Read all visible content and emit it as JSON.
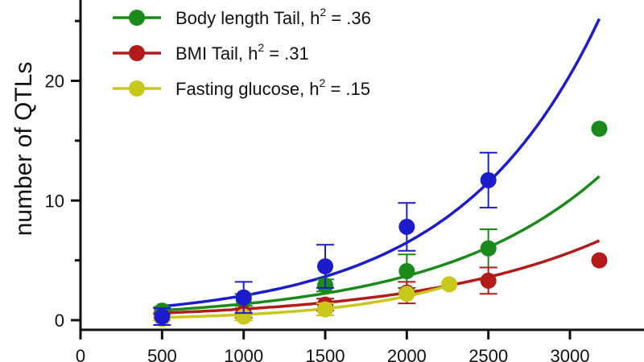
{
  "chart_data": {
    "type": "scatter",
    "ylabel": "number of QTLs",
    "xlabel": "",
    "xlim": [
      0,
      3300
    ],
    "ylim": [
      -0.5,
      26.5
    ],
    "x_ticks": [
      "0",
      "500",
      "1000",
      "1500",
      "2000",
      "2500",
      "3000"
    ],
    "x_tick_values": [
      0,
      500,
      1000,
      1500,
      2000,
      2500,
      3000
    ],
    "y_ticks": [
      "0",
      "10",
      "20"
    ],
    "y_tick_values": [
      0,
      10,
      20
    ],
    "legend_position": "top-left",
    "series": [
      {
        "name": "Body length Tail, h = .36",
        "legend": {
          "prefix": "Body length Tail, h",
          "sup": "2",
          "suffix": " = .36"
        },
        "color": "#1a8a1a",
        "points": [
          {
            "x": 500,
            "y": 0.8,
            "err": 0.3
          },
          {
            "x": 1000,
            "y": 1.7,
            "err": 0.5
          },
          {
            "x": 1500,
            "y": 2.9,
            "err": 0.5
          },
          {
            "x": 2000,
            "y": 4.1,
            "err": 1.4
          },
          {
            "x": 2500,
            "y": 6.0,
            "err": 1.6
          },
          {
            "x": 3180,
            "y": 16.0
          }
        ],
        "fit": {
          "a": 0.5,
          "b": 0.001
        }
      },
      {
        "name": "BMI  Tail, h = .31",
        "legend": {
          "prefix": "BMI  Tail, h",
          "sup": "2",
          "suffix": " = .31"
        },
        "color": "#b31b1b",
        "points": [
          {
            "x": 500,
            "y": 0.3,
            "err": 0.3
          },
          {
            "x": 1000,
            "y": 0.6,
            "err": 0.4
          },
          {
            "x": 1500,
            "y": 1.3,
            "err": 0.5
          },
          {
            "x": 2000,
            "y": 2.3,
            "err": 0.9
          },
          {
            "x": 2500,
            "y": 3.3,
            "err": 1.1
          },
          {
            "x": 3180,
            "y": 5.0
          }
        ],
        "fit": {
          "a": 0.38,
          "b": 0.0009
        }
      },
      {
        "name": "Fasting glucose, h = .15",
        "legend": {
          "prefix": "Fasting glucose, h",
          "sup": "2",
          "suffix": " = .15"
        },
        "color": "#c8c81a",
        "points": [
          {
            "x": 500,
            "y": 0.1,
            "err": 0.1
          },
          {
            "x": 1000,
            "y": 0.3,
            "err": 0.3
          },
          {
            "x": 1500,
            "y": 0.9,
            "err": 0.5
          },
          {
            "x": 2000,
            "y": 2.2
          },
          {
            "x": 2260,
            "y": 3.0
          }
        ],
        "fit": {
          "a": 0.11,
          "b": 0.00145,
          "xmax": 2260
        }
      },
      {
        "name": "",
        "color": "#1c1ccc",
        "points": [
          {
            "x": 500,
            "y": 0.3,
            "err": 0.7
          },
          {
            "x": 1000,
            "y": 1.9,
            "err": 1.3
          },
          {
            "x": 1500,
            "y": 4.5,
            "err": 1.8
          },
          {
            "x": 2000,
            "y": 7.8,
            "err": 2.0
          },
          {
            "x": 2500,
            "y": 11.7,
            "err": 2.3
          }
        ],
        "fit": {
          "a": 0.65,
          "b": 0.00115
        }
      }
    ]
  }
}
